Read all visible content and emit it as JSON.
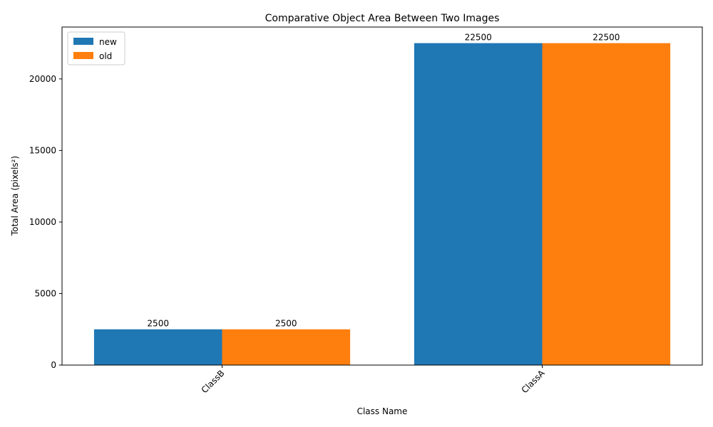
{
  "chart_data": {
    "type": "bar",
    "title": "Comparative Object Area Between Two Images",
    "xlabel": "Class Name",
    "ylabel": "Total Area (pixels²)",
    "categories": [
      "ClassB",
      "ClassA"
    ],
    "series": [
      {
        "name": "new",
        "values": [
          2500,
          22500
        ],
        "color": "#1f77b4"
      },
      {
        "name": "old",
        "values": [
          2500,
          22500
        ],
        "color": "#ff7f0e"
      }
    ],
    "ylim": [
      0,
      23625
    ],
    "yticks": [
      0,
      5000,
      10000,
      15000,
      20000
    ],
    "tick_label_rotation_deg": 45,
    "grid": false,
    "legend_position": "upper-left",
    "data_labels": true
  }
}
